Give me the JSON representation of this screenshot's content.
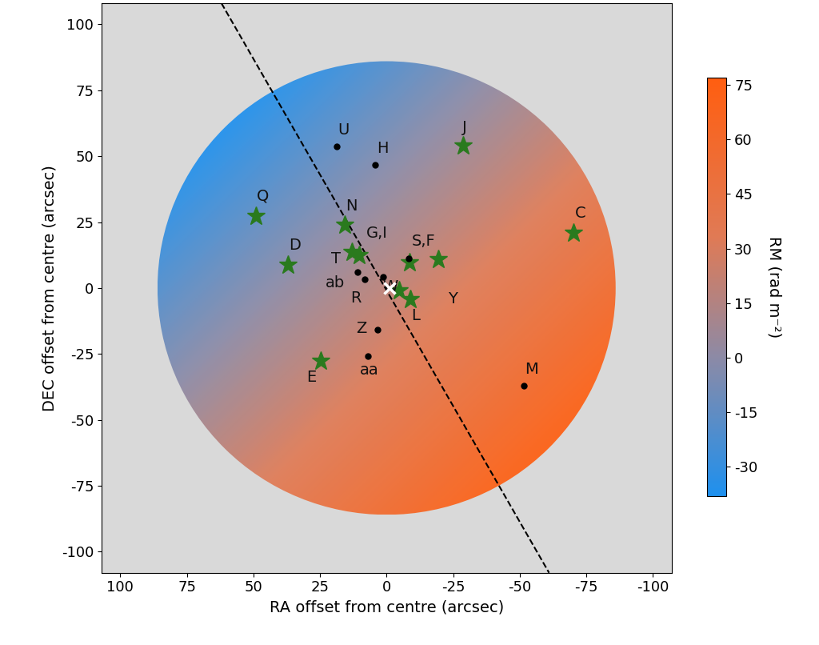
{
  "chart_data": {
    "type": "scatter",
    "xlabel": "RA offset from centre (arcsec)",
    "ylabel": "DEC offset from centre (arcsec)",
    "xlim": [
      107,
      -107
    ],
    "ylim": [
      -108,
      108
    ],
    "xticks": [
      100,
      75,
      50,
      25,
      0,
      -25,
      -50,
      -75,
      -100
    ],
    "yticks": [
      -100,
      -75,
      -50,
      -25,
      0,
      25,
      50,
      75,
      100
    ],
    "series": [
      {
        "marker": "star",
        "color": "#2a7a1e",
        "x": [
          -28.7,
          49.1,
          -70.1,
          15.6,
          37.1,
          12.9,
          10.2,
          -8.7,
          -19.5,
          -4.8,
          -9.0,
          24.6
        ],
        "y": [
          53.9,
          27.4,
          20.8,
          23.8,
          8.7,
          13.6,
          12.3,
          9.6,
          10.8,
          -0.9,
          -4.2,
          -27.7
        ],
        "labels": [
          "J",
          "Q",
          "C",
          "N",
          "D",
          "T",
          "G,I",
          null,
          "Y",
          null,
          "L",
          "E"
        ]
      },
      {
        "marker": "circle",
        "color": "#000000",
        "x": [
          18.6,
          4.2,
          -8.4,
          1.2,
          10.8,
          8.1,
          3.3,
          6.9,
          -51.5
        ],
        "y": [
          53.6,
          46.7,
          11.1,
          4.2,
          6.0,
          3.3,
          -15.7,
          -25.9,
          -37.0
        ],
        "labels": [
          "U",
          "H",
          "S,F",
          "W",
          "ab",
          "R",
          "Z",
          "aa",
          "M"
        ]
      }
    ],
    "center": {
      "x": -1,
      "y": 0,
      "marker": "x",
      "color": "#ffffff"
    },
    "line": {
      "x": [
        62,
        -61
      ],
      "y": [
        108,
        -108
      ],
      "line_style": "dashed",
      "color": "#000000"
    },
    "rm_map": {
      "radius": 86,
      "gradient_from": [
        60,
        60
      ],
      "gradient_to": [
        -60,
        -60
      ]
    },
    "colorbar": {
      "label": "RM (rad m⁻²)",
      "lim": [
        -38,
        77
      ],
      "ticks": [
        -30,
        -15,
        0,
        15,
        30,
        45,
        60,
        75
      ]
    }
  }
}
